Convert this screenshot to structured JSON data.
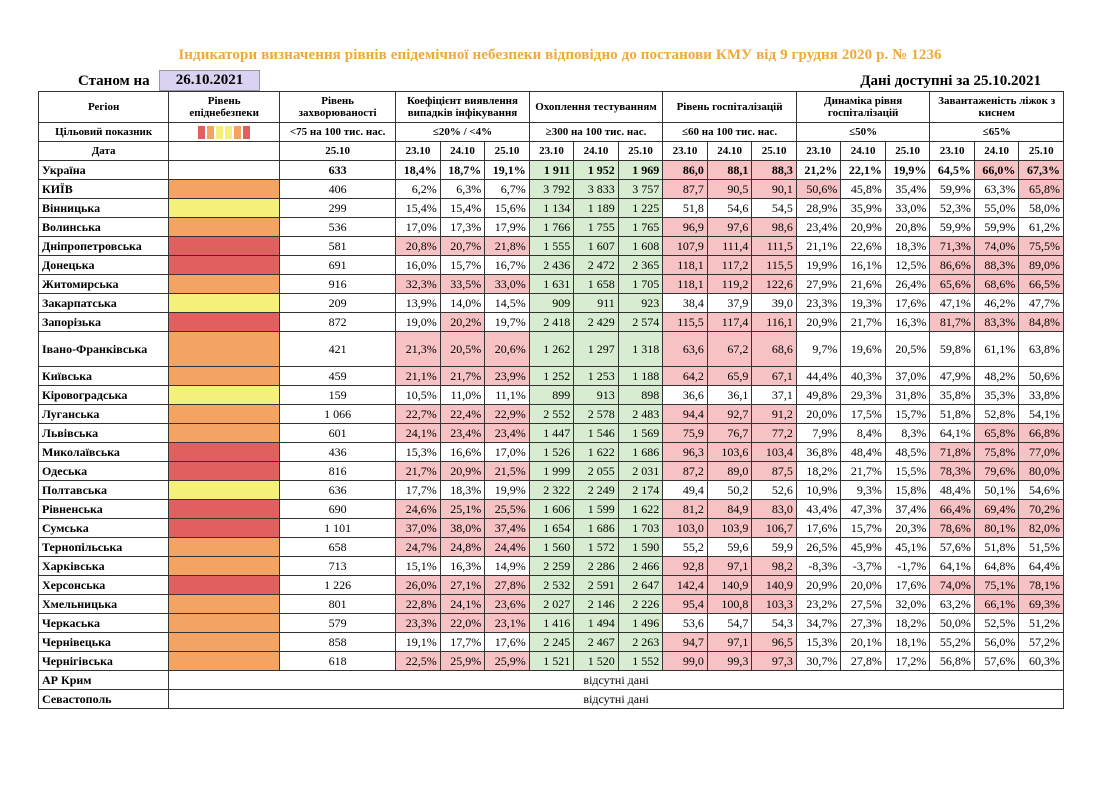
{
  "title": "Індикатори визначення рівнів епідемічної небезпеки відповідно до постанови КМУ від 9 грудня 2020 р. № 1236",
  "as_of_label": "Станом на",
  "as_of_date": "26.10.2021",
  "available_text": "Дані доступні за  25.10.2021",
  "colors": {
    "red": "#e06060",
    "orange": "#f4a462",
    "yellow": "#f5f07a",
    "cell_red": "#f6c2c4",
    "cell_green": "#d7ecd0"
  },
  "header": {
    "region": "Регіон",
    "danger": "Рівень епіднебезпеки",
    "incidence": "Рівень захворюваності",
    "detection": "Коефіцієнт виявлення випадків інфікування",
    "testing": "Охоплення тестуванням",
    "hosp": "Рівень госпіталізацій",
    "dynamics": "Динаміка рівня госпіталізацій",
    "beds": "Завантаженість ліжок з киснем",
    "target_label": "Цільовий показник",
    "target_incidence": "<75 на 100 тис. нас.",
    "target_detection": "≤20% / <4%",
    "target_testing": "≥300 на 100 тис. нас.",
    "target_hosp": "≤60 на 100 тис. нас.",
    "target_dynamics": "≤50%",
    "target_beds": "≤65%",
    "date_label": "Дата",
    "d_single": "25.10",
    "d1": "23.10",
    "d2": "24.10",
    "d3": "25.10"
  },
  "rows": [
    {
      "region": "Україна",
      "level": "",
      "inc": "633",
      "det": [
        "18,4%",
        "18,7%",
        "19,1%"
      ],
      "test": [
        "1 911",
        "1 952",
        "1 969"
      ],
      "hosp": [
        "86,0",
        "88,1",
        "88,3"
      ],
      "dyn": [
        "21,2%",
        "22,1%",
        "19,9%"
      ],
      "beds": [
        "64,5%",
        "66,0%",
        "67,3%"
      ],
      "det_red": [
        0,
        0,
        0
      ],
      "hosp_red": [
        1,
        1,
        1
      ],
      "dyn_red": [
        0,
        0,
        0
      ],
      "beds_red": [
        0,
        1,
        1
      ]
    },
    {
      "region": "КИЇВ",
      "level": "orange",
      "inc": "406",
      "det": [
        "6,2%",
        "6,3%",
        "6,7%"
      ],
      "test": [
        "3 792",
        "3 833",
        "3 757"
      ],
      "hosp": [
        "87,7",
        "90,5",
        "90,1"
      ],
      "dyn": [
        "50,6%",
        "45,8%",
        "35,4%"
      ],
      "beds": [
        "59,9%",
        "63,3%",
        "65,8%"
      ],
      "det_red": [
        0,
        0,
        0
      ],
      "hosp_red": [
        1,
        1,
        1
      ],
      "dyn_red": [
        1,
        0,
        0
      ],
      "beds_red": [
        0,
        0,
        1
      ]
    },
    {
      "region": "Вінницька",
      "level": "yellow",
      "inc": "299",
      "det": [
        "15,4%",
        "15,4%",
        "15,6%"
      ],
      "test": [
        "1 134",
        "1 189",
        "1 225"
      ],
      "hosp": [
        "51,8",
        "54,6",
        "54,5"
      ],
      "dyn": [
        "28,9%",
        "35,9%",
        "33,0%"
      ],
      "beds": [
        "52,3%",
        "55,0%",
        "58,0%"
      ],
      "det_red": [
        0,
        0,
        0
      ],
      "hosp_red": [
        0,
        0,
        0
      ],
      "dyn_red": [
        0,
        0,
        0
      ],
      "beds_red": [
        0,
        0,
        0
      ]
    },
    {
      "region": "Волинська",
      "level": "orange",
      "inc": "536",
      "det": [
        "17,0%",
        "17,3%",
        "17,9%"
      ],
      "test": [
        "1 766",
        "1 755",
        "1 765"
      ],
      "hosp": [
        "96,9",
        "97,6",
        "98,6"
      ],
      "dyn": [
        "23,4%",
        "20,9%",
        "20,8%"
      ],
      "beds": [
        "59,9%",
        "59,9%",
        "61,2%"
      ],
      "det_red": [
        0,
        0,
        0
      ],
      "hosp_red": [
        1,
        1,
        1
      ],
      "dyn_red": [
        0,
        0,
        0
      ],
      "beds_red": [
        0,
        0,
        0
      ]
    },
    {
      "region": "Дніпропетровська",
      "level": "red",
      "inc": "581",
      "det": [
        "20,8%",
        "20,7%",
        "21,8%"
      ],
      "test": [
        "1 555",
        "1 607",
        "1 608"
      ],
      "hosp": [
        "107,9",
        "111,4",
        "111,5"
      ],
      "dyn": [
        "21,1%",
        "22,6%",
        "18,3%"
      ],
      "beds": [
        "71,3%",
        "74,0%",
        "75,5%"
      ],
      "det_red": [
        1,
        1,
        1
      ],
      "hosp_red": [
        1,
        1,
        1
      ],
      "dyn_red": [
        0,
        0,
        0
      ],
      "beds_red": [
        1,
        1,
        1
      ]
    },
    {
      "region": "Донецька",
      "level": "red",
      "inc": "691",
      "det": [
        "16,0%",
        "15,7%",
        "16,7%"
      ],
      "test": [
        "2 436",
        "2 472",
        "2 365"
      ],
      "hosp": [
        "118,1",
        "117,2",
        "115,5"
      ],
      "dyn": [
        "19,9%",
        "16,1%",
        "12,5%"
      ],
      "beds": [
        "86,6%",
        "88,3%",
        "89,0%"
      ],
      "det_red": [
        0,
        0,
        0
      ],
      "hosp_red": [
        1,
        1,
        1
      ],
      "dyn_red": [
        0,
        0,
        0
      ],
      "beds_red": [
        1,
        1,
        1
      ]
    },
    {
      "region": "Житомирська",
      "level": "orange",
      "inc": "916",
      "det": [
        "32,3%",
        "33,5%",
        "33,0%"
      ],
      "test": [
        "1 631",
        "1 658",
        "1 705"
      ],
      "hosp": [
        "118,1",
        "119,2",
        "122,6"
      ],
      "dyn": [
        "27,9%",
        "21,6%",
        "26,4%"
      ],
      "beds": [
        "65,6%",
        "68,6%",
        "66,5%"
      ],
      "det_red": [
        1,
        1,
        1
      ],
      "hosp_red": [
        1,
        1,
        1
      ],
      "dyn_red": [
        0,
        0,
        0
      ],
      "beds_red": [
        1,
        1,
        1
      ]
    },
    {
      "region": "Закарпатська",
      "level": "yellow",
      "inc": "209",
      "det": [
        "13,9%",
        "14,0%",
        "14,5%"
      ],
      "test": [
        "909",
        "911",
        "923"
      ],
      "hosp": [
        "38,4",
        "37,9",
        "39,0"
      ],
      "dyn": [
        "23,3%",
        "19,3%",
        "17,6%"
      ],
      "beds": [
        "47,1%",
        "46,2%",
        "47,7%"
      ],
      "det_red": [
        0,
        0,
        0
      ],
      "hosp_red": [
        0,
        0,
        0
      ],
      "dyn_red": [
        0,
        0,
        0
      ],
      "beds_red": [
        0,
        0,
        0
      ]
    },
    {
      "region": "Запорізька",
      "level": "red",
      "inc": "872",
      "det": [
        "19,0%",
        "20,2%",
        "19,7%"
      ],
      "test": [
        "2 418",
        "2 429",
        "2 574"
      ],
      "hosp": [
        "115,5",
        "117,4",
        "116,1"
      ],
      "dyn": [
        "20,9%",
        "21,7%",
        "16,3%"
      ],
      "beds": [
        "81,7%",
        "83,3%",
        "84,8%"
      ],
      "det_red": [
        0,
        1,
        0
      ],
      "hosp_red": [
        1,
        1,
        1
      ],
      "dyn_red": [
        0,
        0,
        0
      ],
      "beds_red": [
        1,
        1,
        1
      ]
    },
    {
      "region": "Івано-Франківська",
      "level": "orange",
      "inc": "421",
      "det": [
        "21,3%",
        "20,5%",
        "20,6%"
      ],
      "test": [
        "1 262",
        "1 297",
        "1 318"
      ],
      "hosp": [
        "63,6",
        "67,2",
        "68,6"
      ],
      "dyn": [
        "9,7%",
        "19,6%",
        "20,5%"
      ],
      "beds": [
        "59,8%",
        "61,1%",
        "63,8%"
      ],
      "det_red": [
        1,
        1,
        1
      ],
      "hosp_red": [
        1,
        1,
        1
      ],
      "dyn_red": [
        0,
        0,
        0
      ],
      "beds_red": [
        0,
        0,
        0
      ]
    },
    {
      "region": "Київська",
      "level": "orange",
      "inc": "459",
      "det": [
        "21,1%",
        "21,7%",
        "23,9%"
      ],
      "test": [
        "1 252",
        "1 253",
        "1 188"
      ],
      "hosp": [
        "64,2",
        "65,9",
        "67,1"
      ],
      "dyn": [
        "44,4%",
        "40,3%",
        "37,0%"
      ],
      "beds": [
        "47,9%",
        "48,2%",
        "50,6%"
      ],
      "det_red": [
        1,
        1,
        1
      ],
      "hosp_red": [
        1,
        1,
        1
      ],
      "dyn_red": [
        0,
        0,
        0
      ],
      "beds_red": [
        0,
        0,
        0
      ]
    },
    {
      "region": "Кіровоградська",
      "level": "yellow",
      "inc": "159",
      "det": [
        "10,5%",
        "11,0%",
        "11,1%"
      ],
      "test": [
        "899",
        "913",
        "898"
      ],
      "hosp": [
        "36,6",
        "36,1",
        "37,1"
      ],
      "dyn": [
        "49,8%",
        "29,3%",
        "31,8%"
      ],
      "beds": [
        "35,8%",
        "35,3%",
        "33,8%"
      ],
      "det_red": [
        0,
        0,
        0
      ],
      "hosp_red": [
        0,
        0,
        0
      ],
      "dyn_red": [
        0,
        0,
        0
      ],
      "beds_red": [
        0,
        0,
        0
      ]
    },
    {
      "region": "Луганська",
      "level": "orange",
      "inc": "1 066",
      "det": [
        "22,7%",
        "22,4%",
        "22,9%"
      ],
      "test": [
        "2 552",
        "2 578",
        "2 483"
      ],
      "hosp": [
        "94,4",
        "92,7",
        "91,2"
      ],
      "dyn": [
        "20,0%",
        "17,5%",
        "15,7%"
      ],
      "beds": [
        "51,8%",
        "52,8%",
        "54,1%"
      ],
      "det_red": [
        1,
        1,
        1
      ],
      "hosp_red": [
        1,
        1,
        1
      ],
      "dyn_red": [
        0,
        0,
        0
      ],
      "beds_red": [
        0,
        0,
        0
      ]
    },
    {
      "region": "Львівська",
      "level": "orange",
      "inc": "601",
      "det": [
        "24,1%",
        "23,4%",
        "23,4%"
      ],
      "test": [
        "1 447",
        "1 546",
        "1 569"
      ],
      "hosp": [
        "75,9",
        "76,7",
        "77,2"
      ],
      "dyn": [
        "7,9%",
        "8,4%",
        "8,3%"
      ],
      "beds": [
        "64,1%",
        "65,8%",
        "66,8%"
      ],
      "det_red": [
        1,
        1,
        1
      ],
      "hosp_red": [
        1,
        1,
        1
      ],
      "dyn_red": [
        0,
        0,
        0
      ],
      "beds_red": [
        0,
        1,
        1
      ]
    },
    {
      "region": "Миколаївська",
      "level": "red",
      "inc": "436",
      "det": [
        "15,3%",
        "16,6%",
        "17,0%"
      ],
      "test": [
        "1 526",
        "1 622",
        "1 686"
      ],
      "hosp": [
        "96,3",
        "103,6",
        "103,4"
      ],
      "dyn": [
        "36,8%",
        "48,4%",
        "48,5%"
      ],
      "beds": [
        "71,8%",
        "75,8%",
        "77,0%"
      ],
      "det_red": [
        0,
        0,
        0
      ],
      "hosp_red": [
        1,
        1,
        1
      ],
      "dyn_red": [
        0,
        0,
        0
      ],
      "beds_red": [
        1,
        1,
        1
      ]
    },
    {
      "region": "Одеська",
      "level": "red",
      "inc": "816",
      "det": [
        "21,7%",
        "20,9%",
        "21,5%"
      ],
      "test": [
        "1 999",
        "2 055",
        "2 031"
      ],
      "hosp": [
        "87,2",
        "89,0",
        "87,5"
      ],
      "dyn": [
        "18,2%",
        "21,7%",
        "15,5%"
      ],
      "beds": [
        "78,3%",
        "79,6%",
        "80,0%"
      ],
      "det_red": [
        1,
        1,
        1
      ],
      "hosp_red": [
        1,
        1,
        1
      ],
      "dyn_red": [
        0,
        0,
        0
      ],
      "beds_red": [
        1,
        1,
        1
      ]
    },
    {
      "region": "Полтавська",
      "level": "yellow",
      "inc": "636",
      "det": [
        "17,7%",
        "18,3%",
        "19,9%"
      ],
      "test": [
        "2 322",
        "2 249",
        "2 174"
      ],
      "hosp": [
        "49,4",
        "50,2",
        "52,6"
      ],
      "dyn": [
        "10,9%",
        "9,3%",
        "15,8%"
      ],
      "beds": [
        "48,4%",
        "50,1%",
        "54,6%"
      ],
      "det_red": [
        0,
        0,
        0
      ],
      "hosp_red": [
        0,
        0,
        0
      ],
      "dyn_red": [
        0,
        0,
        0
      ],
      "beds_red": [
        0,
        0,
        0
      ]
    },
    {
      "region": "Рівненська",
      "level": "red",
      "inc": "690",
      "det": [
        "24,6%",
        "25,1%",
        "25,5%"
      ],
      "test": [
        "1 606",
        "1 599",
        "1 622"
      ],
      "hosp": [
        "81,2",
        "84,9",
        "83,0"
      ],
      "dyn": [
        "43,4%",
        "47,3%",
        "37,4%"
      ],
      "beds": [
        "66,4%",
        "69,4%",
        "70,2%"
      ],
      "det_red": [
        1,
        1,
        1
      ],
      "hosp_red": [
        1,
        1,
        1
      ],
      "dyn_red": [
        0,
        0,
        0
      ],
      "beds_red": [
        1,
        1,
        1
      ]
    },
    {
      "region": "Сумська",
      "level": "red",
      "inc": "1 101",
      "det": [
        "37,0%",
        "38,0%",
        "37,4%"
      ],
      "test": [
        "1 654",
        "1 686",
        "1 703"
      ],
      "hosp": [
        "103,0",
        "103,9",
        "106,7"
      ],
      "dyn": [
        "17,6%",
        "15,7%",
        "20,3%"
      ],
      "beds": [
        "78,6%",
        "80,1%",
        "82,0%"
      ],
      "det_red": [
        1,
        1,
        1
      ],
      "hosp_red": [
        1,
        1,
        1
      ],
      "dyn_red": [
        0,
        0,
        0
      ],
      "beds_red": [
        1,
        1,
        1
      ]
    },
    {
      "region": "Тернопільська",
      "level": "orange",
      "inc": "658",
      "det": [
        "24,7%",
        "24,8%",
        "24,4%"
      ],
      "test": [
        "1 560",
        "1 572",
        "1 590"
      ],
      "hosp": [
        "55,2",
        "59,6",
        "59,9"
      ],
      "dyn": [
        "26,5%",
        "45,9%",
        "45,1%"
      ],
      "beds": [
        "57,6%",
        "51,8%",
        "51,5%"
      ],
      "det_red": [
        1,
        1,
        1
      ],
      "hosp_red": [
        0,
        0,
        0
      ],
      "dyn_red": [
        0,
        0,
        0
      ],
      "beds_red": [
        0,
        0,
        0
      ]
    },
    {
      "region": "Харківська",
      "level": "orange",
      "inc": "713",
      "det": [
        "15,1%",
        "16,3%",
        "14,9%"
      ],
      "test": [
        "2 259",
        "2 286",
        "2 466"
      ],
      "hosp": [
        "92,8",
        "97,1",
        "98,2"
      ],
      "dyn": [
        "-8,3%",
        "-3,7%",
        "-1,7%"
      ],
      "beds": [
        "64,1%",
        "64,8%",
        "64,4%"
      ],
      "det_red": [
        0,
        0,
        0
      ],
      "hosp_red": [
        1,
        1,
        1
      ],
      "dyn_red": [
        0,
        0,
        0
      ],
      "beds_red": [
        0,
        0,
        0
      ]
    },
    {
      "region": "Херсонська",
      "level": "red",
      "inc": "1 226",
      "det": [
        "26,0%",
        "27,1%",
        "27,8%"
      ],
      "test": [
        "2 532",
        "2 591",
        "2 647"
      ],
      "hosp": [
        "142,4",
        "140,9",
        "140,9"
      ],
      "dyn": [
        "20,9%",
        "20,0%",
        "17,6%"
      ],
      "beds": [
        "74,0%",
        "75,1%",
        "78,1%"
      ],
      "det_red": [
        1,
        1,
        1
      ],
      "hosp_red": [
        1,
        1,
        1
      ],
      "dyn_red": [
        0,
        0,
        0
      ],
      "beds_red": [
        1,
        1,
        1
      ]
    },
    {
      "region": "Хмельницька",
      "level": "orange",
      "inc": "801",
      "det": [
        "22,8%",
        "24,1%",
        "23,6%"
      ],
      "test": [
        "2 027",
        "2 146",
        "2 226"
      ],
      "hosp": [
        "95,4",
        "100,8",
        "103,3"
      ],
      "dyn": [
        "23,2%",
        "27,5%",
        "32,0%"
      ],
      "beds": [
        "63,2%",
        "66,1%",
        "69,3%"
      ],
      "det_red": [
        1,
        1,
        1
      ],
      "hosp_red": [
        1,
        1,
        1
      ],
      "dyn_red": [
        0,
        0,
        0
      ],
      "beds_red": [
        0,
        1,
        1
      ]
    },
    {
      "region": "Черкаська",
      "level": "orange",
      "inc": "579",
      "det": [
        "23,3%",
        "22,0%",
        "23,1%"
      ],
      "test": [
        "1 416",
        "1 494",
        "1 496"
      ],
      "hosp": [
        "53,6",
        "54,7",
        "54,3"
      ],
      "dyn": [
        "34,7%",
        "27,3%",
        "18,2%"
      ],
      "beds": [
        "50,0%",
        "52,5%",
        "51,2%"
      ],
      "det_red": [
        1,
        1,
        1
      ],
      "hosp_red": [
        0,
        0,
        0
      ],
      "dyn_red": [
        0,
        0,
        0
      ],
      "beds_red": [
        0,
        0,
        0
      ]
    },
    {
      "region": "Чернівецька",
      "level": "orange",
      "inc": "858",
      "det": [
        "19,1%",
        "17,7%",
        "17,6%"
      ],
      "test": [
        "2 245",
        "2 467",
        "2 263"
      ],
      "hosp": [
        "94,7",
        "97,1",
        "96,5"
      ],
      "dyn": [
        "15,3%",
        "20,1%",
        "18,1%"
      ],
      "beds": [
        "55,2%",
        "56,0%",
        "57,2%"
      ],
      "det_red": [
        0,
        0,
        0
      ],
      "hosp_red": [
        1,
        1,
        1
      ],
      "dyn_red": [
        0,
        0,
        0
      ],
      "beds_red": [
        0,
        0,
        0
      ]
    },
    {
      "region": "Чернігівська",
      "level": "orange",
      "inc": "618",
      "det": [
        "22,5%",
        "25,9%",
        "25,9%"
      ],
      "test": [
        "1 521",
        "1 520",
        "1 552"
      ],
      "hosp": [
        "99,0",
        "99,3",
        "97,3"
      ],
      "dyn": [
        "30,7%",
        "27,8%",
        "17,2%"
      ],
      "beds": [
        "56,8%",
        "57,6%",
        "60,3%"
      ],
      "det_red": [
        1,
        1,
        1
      ],
      "hosp_red": [
        1,
        1,
        1
      ],
      "dyn_red": [
        0,
        0,
        0
      ],
      "beds_red": [
        0,
        0,
        0
      ]
    }
  ],
  "absent_rows": [
    {
      "region": "АР Крим",
      "text": "відсутні дані"
    },
    {
      "region": "Севастополь",
      "text": "відсутні дані"
    }
  ]
}
